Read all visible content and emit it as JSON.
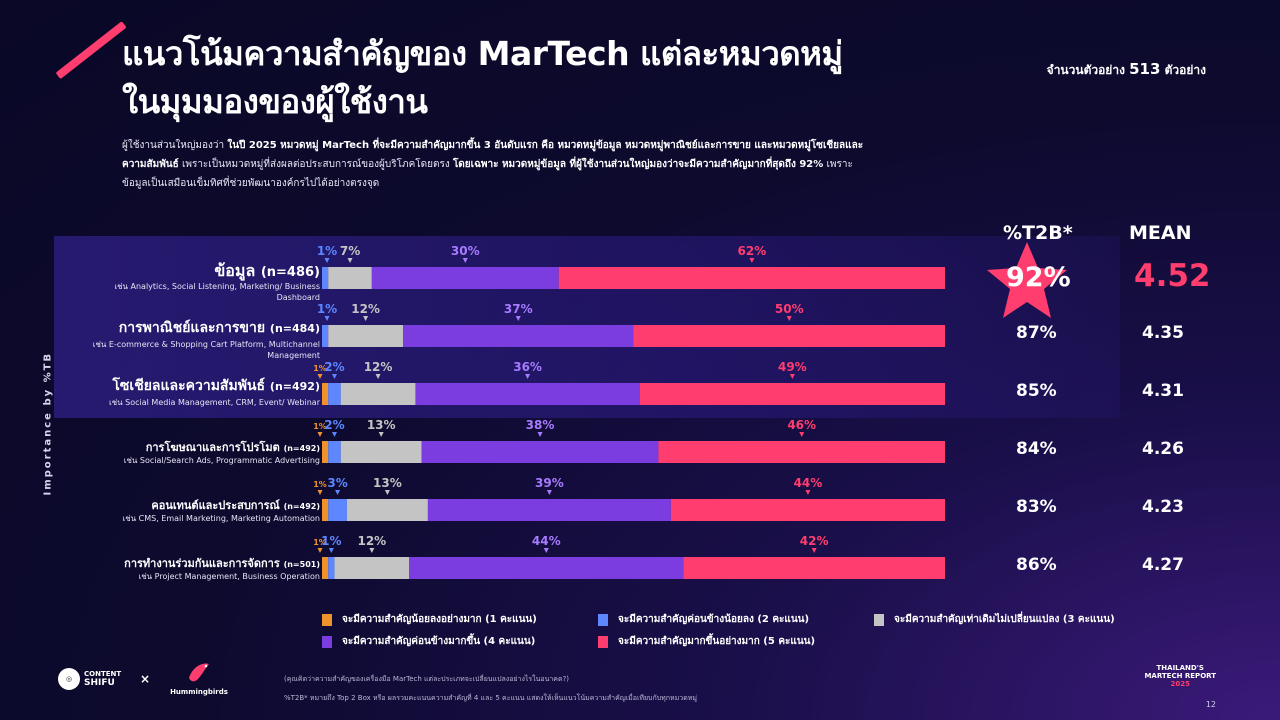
{
  "header": {
    "title_line1": "แนวโน้มความสำคัญของ MarTech แต่ละหมวดหมู่",
    "title_line2": "ในมุมมองของผู้ใช้งาน",
    "sample_prefix": "จำนวนตัวอย่าง",
    "sample_count": "513",
    "sample_suffix": "ตัวอย่าง"
  },
  "summary": {
    "line1_a": "ผู้ใช้งานส่วนใหญ่มองว่า",
    "line1_b": "ในปี 2025 หมวดหมู่ MarTech ที่จะมีความสำคัญมากขึ้น 3 อันดับแรก คือ หมวดหมู่ข้อมูล หมวดหมู่พาณิชย์และการขาย และหมวดหมู่โซเชียลและ",
    "line2_a": "ความสัมพันธ์",
    "line2_b": "เพราะเป็นหมวดหมู่ที่ส่งผลต่อประสบการณ์ของผู้บริโภคโดยตรง",
    "line2_c": "โดยเฉพาะ หมวดหมู่ข้อมูล ที่ผู้ใช้งานส่วนใหญ่มองว่าจะมีความสำคัญมากที่สุดถึง 92%",
    "line2_d": "เพราะ",
    "line3": "ข้อมูลเป็นเสมือนเข็มทิศที่ช่วยพัฒนาองค์กรไปได้อย่างตรงจุด"
  },
  "axis_label": "Importance by %TB",
  "columns": {
    "t2b": "%T2B*",
    "mean": "MEAN"
  },
  "chart_data": {
    "type": "bar",
    "orientation": "horizontal-stacked-100",
    "categories": [
      {
        "name": "ข้อมูล",
        "n": "(n=486)",
        "example": "เช่น Analytics, Social Listening, Marketing/ Business Dashboard",
        "t2b": "92%",
        "mean": "4.52"
      },
      {
        "name": "การพาณิชย์และการขาย",
        "n": "(n=484)",
        "example": "เช่น E-commerce & Shopping Cart Platform, Multichannel Management",
        "t2b": "87%",
        "mean": "4.35"
      },
      {
        "name": "โซเชียลและความสัมพันธ์",
        "n": "(n=492)",
        "example": "เช่น Social Media Management, CRM, Event/ Webinar",
        "t2b": "85%",
        "mean": "4.31"
      },
      {
        "name": "การโฆษณาและการโปรโมต",
        "n": "(n=492)",
        "example": "เช่น Social/Search Ads, Programmatic Advertising",
        "t2b": "84%",
        "mean": "4.26"
      },
      {
        "name": "คอนเทนต์และประสบการณ์",
        "n": "(n=492)",
        "example": "เช่น CMS, Email Marketing, Marketing Automation",
        "t2b": "83%",
        "mean": "4.23"
      },
      {
        "name": "การทำงานร่วมกันและการจัดการ",
        "n": "(n=501)",
        "example": "เช่น Project Management, Business Operation",
        "t2b": "86%",
        "mean": "4.27"
      }
    ],
    "series": [
      {
        "name": "จะมีความสำคัญน้อยลงอย่างมาก (1 คะแนน)",
        "color": "#f0922c",
        "values": [
          0,
          0,
          1,
          1,
          1,
          1
        ]
      },
      {
        "name": "จะมีความสำคัญค่อนข้างน้อยลง (2 คะแนน)",
        "color": "#5d86ff",
        "values": [
          1,
          1,
          2,
          2,
          3,
          1
        ]
      },
      {
        "name": "จะมีความสำคัญเท่าเดิมไม่เปลี่ยนแปลง (3 คะแนน)",
        "color": "#c4c4c4",
        "values": [
          7,
          12,
          12,
          13,
          13,
          12
        ]
      },
      {
        "name": "จะมีความสำคัญค่อนข้างมากขึ้น (4 คะแนน)",
        "color": "#7b3de0",
        "values": [
          30,
          37,
          36,
          38,
          39,
          44
        ]
      },
      {
        "name": "จะมีความสำคัญมากขึ้นอย่างมาก (5 คะแนน)",
        "color": "#ff3d6e",
        "values": [
          62,
          50,
          49,
          46,
          44,
          42
        ]
      }
    ],
    "xlim": [
      0,
      100
    ]
  },
  "footnotes": {
    "question": "(คุณคิดว่าความสำคัญของเครื่องมือ MarTech แต่ละประเภทจะเปลี่ยนแปลงอย่างไรในอนาคต?)",
    "note": "%T2B* หมายถึง Top 2 Box หรือ ผลรวมคะแนนความสำคัญที่ 4 และ 5 คะแนน แสดงให้เห็นแนวโน้มความสำคัญเมื่อเทียบกับทุกหมวดหมู่"
  },
  "logos": {
    "cs_top": "CONTENT",
    "cs_bottom": "SHIFU",
    "times": "×",
    "hummingbirds": "Hummingbirds",
    "report_line1": "THAILAND'S",
    "report_line2": "MARTECH REPORT",
    "report_year": "2025"
  },
  "page_number": "12"
}
